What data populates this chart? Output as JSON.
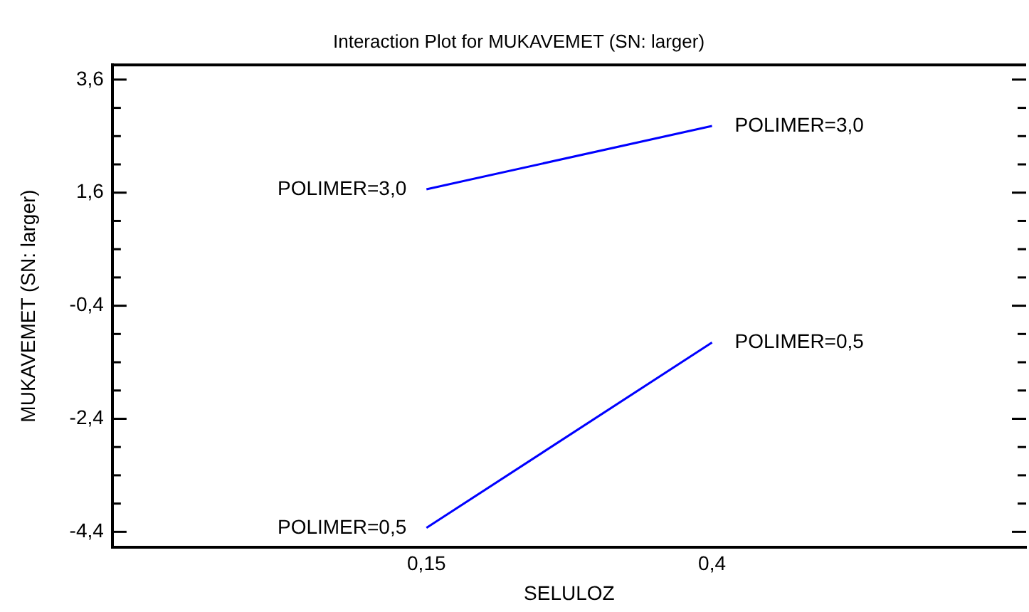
{
  "chart_data": {
    "type": "line",
    "title": "Interaction Plot for MUKAVEMET (SN: larger)",
    "xlabel": "SELULOZ",
    "ylabel": "MUKAVEMET (SN: larger)",
    "x": [
      0.15,
      0.4
    ],
    "series": [
      {
        "name": "POLIMER=3,0",
        "color": "#0000ff",
        "values": [
          1.66,
          2.78
        ]
      },
      {
        "name": "POLIMER=0,5",
        "color": "#0000ff",
        "values": [
          -4.33,
          -1.05
        ]
      }
    ],
    "xlim": [
      -0.125,
      0.675
    ],
    "xticks": [
      {
        "value": 0.15,
        "label": "0,15"
      },
      {
        "value": 0.4,
        "label": "0,4"
      }
    ],
    "ylim": [
      -4.67,
      3.86
    ],
    "yticks": [
      {
        "value": -4.4,
        "label": "-4,4"
      },
      {
        "value": -3.9,
        "label": null
      },
      {
        "value": -3.4,
        "label": null
      },
      {
        "value": -2.9,
        "label": null
      },
      {
        "value": -2.4,
        "label": "-2,4"
      },
      {
        "value": -1.9,
        "label": null
      },
      {
        "value": -1.4,
        "label": null
      },
      {
        "value": -0.9,
        "label": null
      },
      {
        "value": -0.4,
        "label": "-0,4"
      },
      {
        "value": 0.1,
        "label": null
      },
      {
        "value": 0.6,
        "label": null
      },
      {
        "value": 1.1,
        "label": null
      },
      {
        "value": 1.6,
        "label": "1,6"
      },
      {
        "value": 2.1,
        "label": null
      },
      {
        "value": 2.6,
        "label": null
      },
      {
        "value": 3.1,
        "label": null
      },
      {
        "value": 3.6,
        "label": "3,6"
      }
    ],
    "grid": false,
    "legend": false,
    "marker": "none",
    "line_style": "solid"
  }
}
